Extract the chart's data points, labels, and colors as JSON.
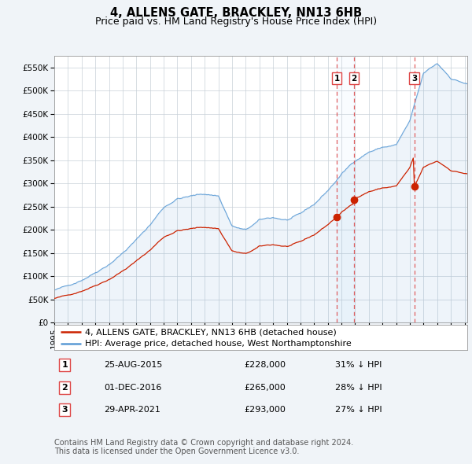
{
  "title": "4, ALLENS GATE, BRACKLEY, NN13 6HB",
  "subtitle": "Price paid vs. HM Land Registry's House Price Index (HPI)",
  "hpi_color": "#5b9bd5",
  "sale_color": "#cc2200",
  "vline_color": "#dd4444",
  "bg_color": "#f0f4f8",
  "plot_bg": "#ffffff",
  "grid_color": "#c8d0d8",
  "shade_color": "#ddeeff",
  "ylim": [
    0,
    575000
  ],
  "yticks": [
    0,
    50000,
    100000,
    150000,
    200000,
    250000,
    300000,
    350000,
    400000,
    450000,
    500000,
    550000
  ],
  "xlim_start": 1995.0,
  "xlim_end": 2025.2,
  "sale_dates": [
    2015.65,
    2016.92,
    2021.33
  ],
  "sale_prices": [
    228000,
    265000,
    293000
  ],
  "sale_labels": [
    "1",
    "2",
    "3"
  ],
  "sale_info": [
    {
      "label": "1",
      "date": "25-AUG-2015",
      "price": "£228,000",
      "hpi_note": "31% ↓ HPI"
    },
    {
      "label": "2",
      "date": "01-DEC-2016",
      "price": "£265,000",
      "hpi_note": "28% ↓ HPI"
    },
    {
      "label": "3",
      "date": "29-APR-2021",
      "price": "£293,000",
      "hpi_note": "27% ↓ HPI"
    }
  ],
  "legend_line1": "4, ALLENS GATE, BRACKLEY, NN13 6HB (detached house)",
  "legend_line2": "HPI: Average price, detached house, West Northamptonshire",
  "footer_text": "Contains HM Land Registry data © Crown copyright and database right 2024.\nThis data is licensed under the Open Government Licence v3.0.",
  "title_fontsize": 10.5,
  "subtitle_fontsize": 9,
  "axis_fontsize": 7.5,
  "legend_fontsize": 8,
  "table_fontsize": 8,
  "footer_fontsize": 7
}
